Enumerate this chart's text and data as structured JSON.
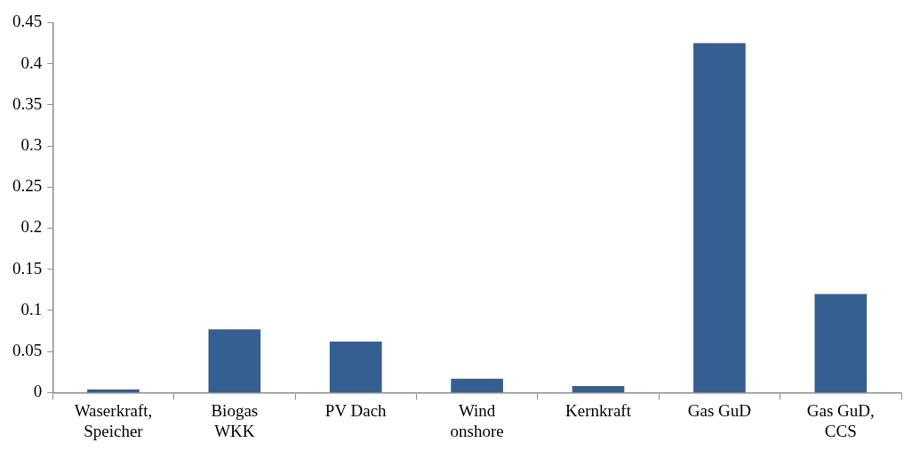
{
  "chart_data": {
    "type": "bar",
    "categories": [
      "Waserkraft, Speicher",
      "Biogas WKK",
      "PV Dach",
      "Wind onshore",
      "Kernkraft",
      "Gas GuD",
      "Gas GuD, CCS"
    ],
    "values": [
      0.004,
      0.077,
      0.062,
      0.017,
      0.008,
      0.425,
      0.12
    ],
    "color": "#365f91",
    "ylim": [
      0,
      0.45
    ],
    "yticks": [
      0,
      0.05,
      0.1,
      0.15,
      0.2,
      0.25,
      0.3,
      0.35,
      0.4,
      0.45
    ],
    "grid": false,
    "legend": false
  }
}
